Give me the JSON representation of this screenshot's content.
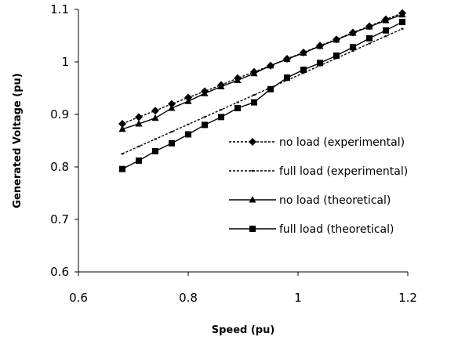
{
  "chart_data": {
    "type": "line",
    "title": "",
    "xlabel": "Speed (pu)",
    "ylabel": "Generated Voltage (pu)",
    "xlim": [
      0.6,
      1.2
    ],
    "ylim": [
      0.6,
      1.1
    ],
    "xticks": [
      0.6,
      0.8,
      1,
      1.2
    ],
    "xtick_labels": [
      "0.6",
      "0.8",
      "1",
      "1.2"
    ],
    "yticks": [
      0.6,
      0.7,
      0.8,
      0.9,
      1,
      1.1
    ],
    "ytick_labels": [
      "0.6",
      "0.7",
      "0.8",
      "0.9",
      "1",
      "1.1"
    ],
    "grid": false,
    "legend_position": "center-right",
    "series": [
      {
        "name": "no load (experimental)",
        "line": "dashed",
        "marker": "diamond",
        "x": [
          0.68,
          0.71,
          0.74,
          0.77,
          0.8,
          0.83,
          0.86,
          0.89,
          0.92,
          0.95,
          0.98,
          1.01,
          1.04,
          1.07,
          1.1,
          1.13,
          1.16,
          1.19
        ],
        "y": [
          0.882,
          0.895,
          0.907,
          0.92,
          0.932,
          0.944,
          0.956,
          0.969,
          0.981,
          0.993,
          1.006,
          1.018,
          1.031,
          1.043,
          1.056,
          1.068,
          1.081,
          1.093
        ]
      },
      {
        "name": "full load (experimental)",
        "line": "dashed",
        "marker": "small-dot",
        "x": [
          0.68,
          0.71,
          0.74,
          0.77,
          0.8,
          0.83,
          0.86,
          0.89,
          0.92,
          0.95,
          0.98,
          1.01,
          1.04,
          1.07,
          1.1,
          1.13,
          1.16,
          1.19
        ],
        "y": [
          0.825,
          0.839,
          0.853,
          0.867,
          0.881,
          0.895,
          0.909,
          0.923,
          0.937,
          0.951,
          0.965,
          0.979,
          0.993,
          1.007,
          1.021,
          1.035,
          1.049,
          1.063
        ]
      },
      {
        "name": "no load (theoretical)",
        "line": "solid",
        "marker": "triangle",
        "x": [
          0.68,
          0.71,
          0.74,
          0.77,
          0.8,
          0.83,
          0.86,
          0.89,
          0.92,
          0.95,
          0.98,
          1.01,
          1.04,
          1.07,
          1.1,
          1.13,
          1.16,
          1.19
        ],
        "y": [
          0.872,
          0.882,
          0.893,
          0.912,
          0.925,
          0.94,
          0.953,
          0.965,
          0.978,
          0.993,
          1.005,
          1.017,
          1.03,
          1.042,
          1.055,
          1.067,
          1.079,
          1.09
        ]
      },
      {
        "name": "full load (theoretical)",
        "line": "solid",
        "marker": "square",
        "x": [
          0.68,
          0.71,
          0.74,
          0.77,
          0.8,
          0.83,
          0.86,
          0.89,
          0.92,
          0.95,
          0.98,
          1.01,
          1.04,
          1.07,
          1.1,
          1.13,
          1.16,
          1.19
        ],
        "y": [
          0.796,
          0.812,
          0.83,
          0.845,
          0.862,
          0.88,
          0.895,
          0.912,
          0.923,
          0.948,
          0.97,
          0.985,
          0.998,
          1.012,
          1.028,
          1.045,
          1.06,
          1.076
        ]
      }
    ]
  }
}
